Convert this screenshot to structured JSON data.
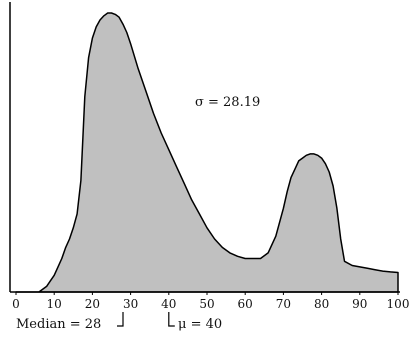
{
  "chart_data": {
    "type": "area",
    "title": "",
    "xlabel": "",
    "ylabel": "",
    "xlim": [
      0,
      100
    ],
    "ylim": [
      0,
      1
    ],
    "grid": false,
    "legend": "none",
    "x_ticks": [
      "0",
      "10",
      "20",
      "30",
      "40",
      "50",
      "60",
      "70",
      "80",
      "90",
      "100"
    ],
    "fill_color": "#c0c0c0",
    "stroke_color": "#000000",
    "series": [
      {
        "x": [
          0,
          4,
          6,
          8,
          9,
          10,
          11,
          12,
          13,
          14,
          15,
          16,
          17,
          18,
          19,
          20,
          21,
          22,
          23,
          24,
          25,
          26,
          27,
          28,
          29,
          30,
          32,
          34,
          36,
          38,
          40,
          42,
          44,
          46,
          48,
          50,
          52,
          54,
          56,
          58,
          60,
          62,
          64,
          66,
          68,
          70,
          71,
          72,
          73,
          74,
          75,
          76,
          77,
          78,
          79,
          80,
          81,
          82,
          83,
          84,
          85,
          86,
          88,
          90,
          92,
          94,
          96,
          98,
          100
        ],
        "y": [
          0.0,
          0.0,
          0.0,
          0.02,
          0.04,
          0.06,
          0.09,
          0.12,
          0.16,
          0.19,
          0.23,
          0.28,
          0.4,
          0.7,
          0.84,
          0.91,
          0.95,
          0.975,
          0.99,
          1.0,
          1.0,
          0.995,
          0.985,
          0.96,
          0.93,
          0.89,
          0.8,
          0.72,
          0.64,
          0.57,
          0.51,
          0.45,
          0.39,
          0.33,
          0.28,
          0.23,
          0.19,
          0.16,
          0.14,
          0.128,
          0.12,
          0.12,
          0.12,
          0.14,
          0.2,
          0.3,
          0.36,
          0.41,
          0.44,
          0.47,
          0.48,
          0.49,
          0.495,
          0.495,
          0.49,
          0.48,
          0.46,
          0.43,
          0.38,
          0.3,
          0.19,
          0.11,
          0.095,
          0.09,
          0.085,
          0.08,
          0.075,
          0.072,
          0.07
        ]
      }
    ],
    "annotations": {
      "sigma": "σ = 28.19",
      "median": "Median = 28",
      "mu": "μ = 40"
    },
    "median_value": 28,
    "mean_value": 40
  }
}
